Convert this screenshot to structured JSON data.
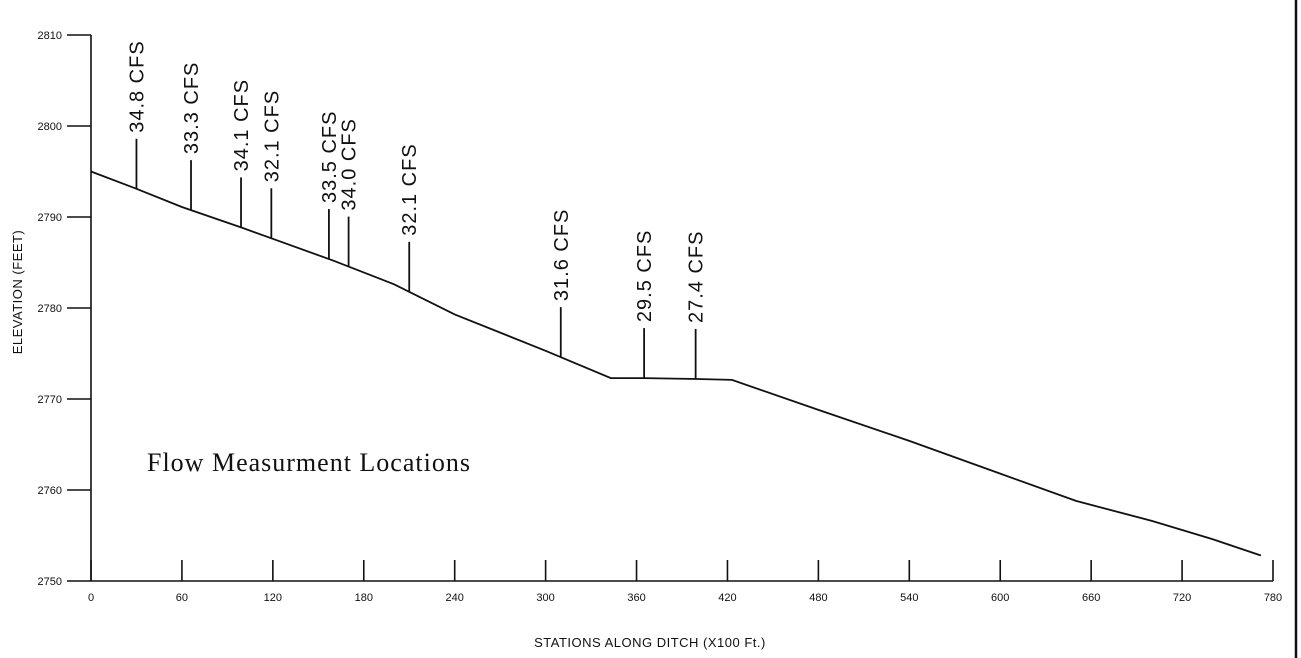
{
  "chart_data": {
    "type": "line",
    "title": "",
    "xlabel": "STATIONS ALONG DITCH   (X100 Ft.)",
    "ylabel": "ELEVATION  (FEET)",
    "xlim": [
      0,
      780
    ],
    "ylim": [
      2750,
      2810
    ],
    "x_ticks": [
      0,
      60,
      120,
      180,
      240,
      300,
      360,
      420,
      480,
      540,
      600,
      660,
      720,
      780
    ],
    "x_tick_labels": [
      "0",
      "60",
      "120",
      "180",
      "240",
      "300",
      "360",
      "420",
      "480",
      "540",
      "600",
      "660",
      "720",
      "780"
    ],
    "y_ticks": [
      2750,
      2760,
      2770,
      2780,
      2790,
      2800,
      2810
    ],
    "y_tick_labels": [
      "2750",
      "2760",
      "2770",
      "2780",
      "2790",
      "2800",
      "2810"
    ],
    "grid": false,
    "series": [
      {
        "x": [
          0,
          30,
          60,
          100,
          120,
          160,
          200,
          240,
          300,
          343,
          365,
          400,
          423,
          480,
          540,
          600,
          650,
          700,
          740,
          772
        ],
        "y": [
          2795,
          2793.1,
          2791.1,
          2788.8,
          2787.6,
          2785.2,
          2782.6,
          2779.3,
          2775.3,
          2772.3,
          2772.3,
          2772.2,
          2772.1,
          2768.8,
          2765.4,
          2761.8,
          2758.8,
          2756.6,
          2754.6,
          2752.8
        ]
      }
    ],
    "annotation": "Flow Measurment Locations",
    "measurements": [
      {
        "x": 30,
        "label": "34.8  CFS"
      },
      {
        "x": 66,
        "label": "33.3  CFS"
      },
      {
        "x": 99,
        "label": "34.1  CFS"
      },
      {
        "x": 119,
        "label": "32.1  CFS"
      },
      {
        "x": 157,
        "label": "33.5  CFS"
      },
      {
        "x": 170,
        "label": "34.0  CFS"
      },
      {
        "x": 210,
        "label": "32.1  CFS"
      },
      {
        "x": 310,
        "label": "31.6  CFS"
      },
      {
        "x": 365,
        "label": "29.5  CFS"
      },
      {
        "x": 399,
        "label": "27.4  CFS"
      }
    ]
  }
}
